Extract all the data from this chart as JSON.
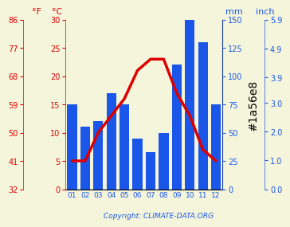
{
  "months": [
    "01",
    "02",
    "03",
    "04",
    "05",
    "06",
    "07",
    "08",
    "09",
    "10",
    "11",
    "12"
  ],
  "precipitation_mm": [
    75,
    55,
    60,
    85,
    75,
    45,
    33,
    50,
    110,
    150,
    130,
    75
  ],
  "temperature_c": [
    5,
    5,
    10,
    13,
    16,
    21,
    23,
    23,
    17,
    13,
    7,
    5
  ],
  "bar_color": "#1a56e8",
  "line_color": "#dd0000",
  "red_color": "#dd0000",
  "blue_color": "#1a56e8",
  "background_color": "#f5f5dc",
  "grid_color": "#bbbbbb",
  "precip_max": 150,
  "temp_max_c": 30,
  "temp_min_c": 0,
  "temp_max_f": 86,
  "temp_min_f": 32,
  "inch_max": 5.9,
  "inch_ticks": [
    0.0,
    1.0,
    2.0,
    3.0,
    3.9,
    4.9,
    5.9
  ],
  "mm_ticks": [
    0,
    25,
    50,
    75,
    100,
    125,
    150
  ],
  "c_ticks": [
    0,
    5,
    10,
    15,
    20,
    25,
    30
  ],
  "f_ticks": [
    32,
    41,
    50,
    59,
    68,
    77,
    86
  ],
  "copyright_text": "Copyright: CLIMATE-DATA.ORG"
}
